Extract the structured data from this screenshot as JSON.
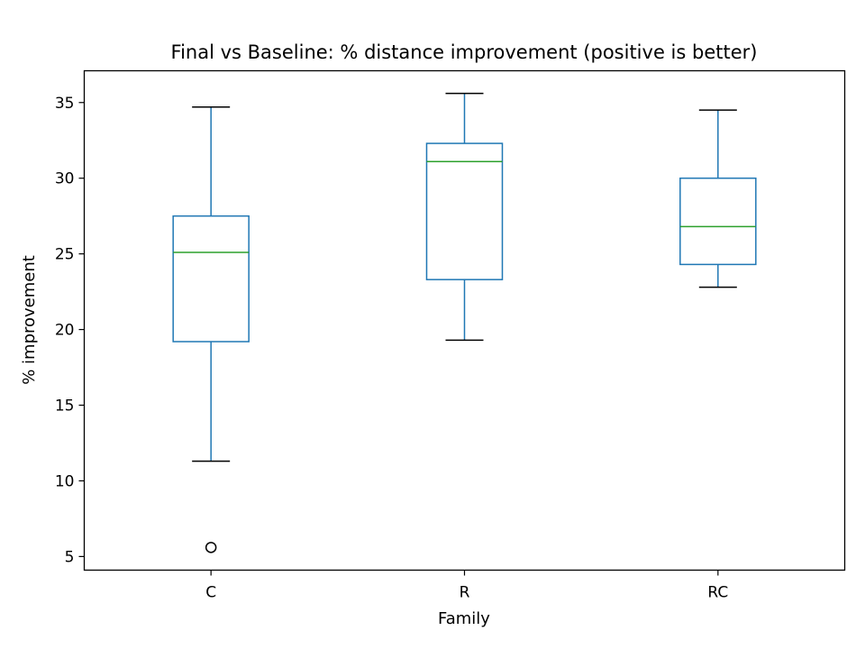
{
  "chart_data": {
    "type": "box",
    "title": "Final vs Baseline: % distance improvement (positive is better)",
    "xlabel": "Family",
    "ylabel": "% improvement",
    "categories": [
      "C",
      "R",
      "RC"
    ],
    "ylim": [
      4.1,
      37.1
    ],
    "yticks": [
      5,
      10,
      15,
      20,
      25,
      30,
      35
    ],
    "grid": false,
    "colors": {
      "box": "#1f77b4",
      "median": "#2ca02c",
      "whisker": "#1f77b4",
      "cap": "#000000",
      "flier": "#000000",
      "frame": "#000000"
    },
    "boxes": [
      {
        "category": "C",
        "whisker_low": 11.3,
        "q1": 19.2,
        "median": 25.1,
        "q3": 27.5,
        "whisker_high": 34.7,
        "fliers": [
          5.6
        ]
      },
      {
        "category": "R",
        "whisker_low": 19.3,
        "q1": 23.3,
        "median": 31.1,
        "q3": 32.3,
        "whisker_high": 35.6,
        "fliers": []
      },
      {
        "category": "RC",
        "whisker_low": 22.8,
        "q1": 24.3,
        "median": 26.8,
        "q3": 30.0,
        "whisker_high": 34.5,
        "fliers": []
      }
    ]
  }
}
